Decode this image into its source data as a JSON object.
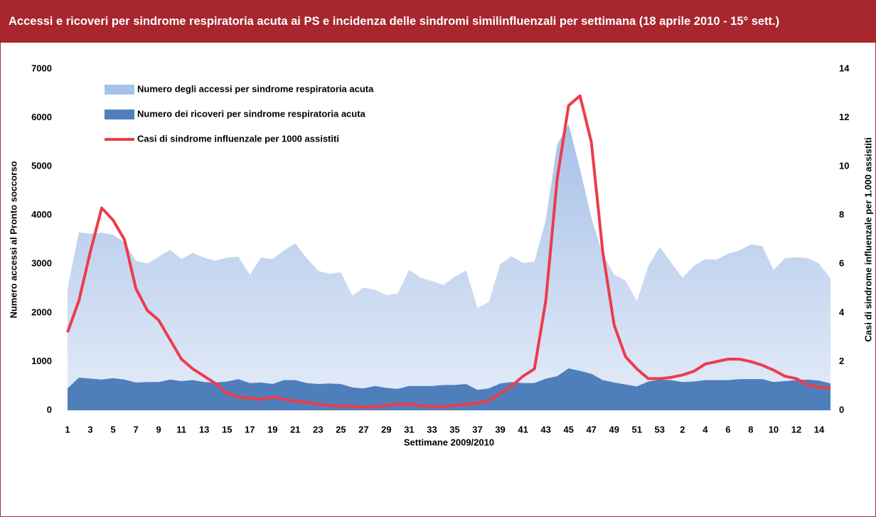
{
  "chart_data": {
    "type": "area-line",
    "title": "Accessi e ricoveri per sindrome respiratoria acuta ai PS e incidenza delle sindromi similinfluenzali per settimana (18 aprile 2010 - 15° sett.)",
    "xlabel": "Settimane 2009/2010",
    "ylabel": "Numero accessi al Pronto soccorso",
    "y2label": "Casi di sindrome influenzale per 1.000 assistiti",
    "categories": [
      "1",
      null,
      "3",
      null,
      "5",
      null,
      "7",
      null,
      "9",
      null,
      "11",
      null,
      "13",
      null,
      "15",
      null,
      "17",
      null,
      "19",
      null,
      "21",
      null,
      "23",
      null,
      "25",
      null,
      "27",
      null,
      "29",
      null,
      "31",
      null,
      "33",
      null,
      "35",
      null,
      "37",
      null,
      "39",
      null,
      "41",
      null,
      "43",
      null,
      "45",
      null,
      "47",
      null,
      "49",
      null,
      "51",
      null,
      "53",
      null,
      "2",
      null,
      "4",
      null,
      "6",
      null,
      "8",
      null,
      "10",
      null,
      "12",
      null,
      "14",
      null
    ],
    "ylim": [
      0,
      7000
    ],
    "yticks": [
      0,
      1000,
      2000,
      3000,
      4000,
      5000,
      6000,
      7000
    ],
    "y2lim": [
      0,
      14
    ],
    "y2ticks": [
      0,
      2,
      4,
      6,
      8,
      10,
      12,
      14
    ],
    "grid": false,
    "legend": "upper-left",
    "series": [
      {
        "name": "Numero degli accessi per sindrome respiratoria acuta",
        "kind": "area",
        "color": "#a7c1e8",
        "values": [
          2500,
          3650,
          3620,
          3640,
          3600,
          3450,
          3070,
          3010,
          3150,
          3290,
          3100,
          3230,
          3130,
          3070,
          3130,
          3150,
          2780,
          3130,
          3100,
          3280,
          3420,
          3120,
          2860,
          2800,
          2830,
          2350,
          2520,
          2470,
          2360,
          2400,
          2880,
          2720,
          2650,
          2570,
          2740,
          2870,
          2100,
          2220,
          3000,
          3160,
          3020,
          3050,
          3900,
          5450,
          5870,
          4950,
          3950,
          3200,
          2780,
          2660,
          2240,
          2960,
          3350,
          3030,
          2720,
          2960,
          3100,
          3090,
          3210,
          3280,
          3400,
          3370,
          2880,
          3120,
          3140,
          3120,
          3010,
          2700
        ]
      },
      {
        "name": "Numero dei ricoveri per sindrome respiratoria acuta",
        "kind": "area",
        "color": "#4f7fbb",
        "values": [
          450,
          670,
          650,
          630,
          660,
          630,
          570,
          580,
          580,
          630,
          600,
          620,
          580,
          570,
          590,
          640,
          560,
          570,
          540,
          620,
          620,
          560,
          540,
          550,
          540,
          470,
          450,
          500,
          460,
          440,
          500,
          500,
          500,
          520,
          520,
          540,
          420,
          450,
          550,
          580,
          560,
          560,
          650,
          700,
          860,
          810,
          750,
          620,
          570,
          530,
          490,
          590,
          630,
          620,
          580,
          590,
          620,
          620,
          620,
          640,
          640,
          640,
          580,
          600,
          620,
          630,
          610,
          550
        ]
      },
      {
        "name": "Casi di sindrome influenzale per 1000 assistiti",
        "kind": "line",
        "axis": "y2",
        "color": "#ee3b4b",
        "values": [
          3.2,
          4.5,
          6.5,
          8.3,
          7.8,
          7.0,
          5.0,
          4.1,
          3.7,
          2.9,
          2.1,
          1.7,
          1.4,
          1.1,
          0.7,
          0.55,
          0.5,
          0.45,
          0.55,
          0.45,
          0.38,
          0.32,
          0.25,
          0.2,
          0.18,
          0.16,
          0.12,
          0.15,
          0.2,
          0.25,
          0.25,
          0.2,
          0.15,
          0.15,
          0.2,
          0.25,
          0.3,
          0.4,
          0.7,
          1.0,
          1.4,
          1.7,
          4.5,
          9.5,
          12.5,
          12.9,
          11.0,
          6.5,
          3.5,
          2.2,
          1.7,
          1.3,
          1.3,
          1.35,
          1.45,
          1.6,
          1.9,
          2.0,
          2.1,
          2.1,
          2.0,
          1.85,
          1.65,
          1.4,
          1.3,
          1.05,
          0.95,
          0.9
        ]
      }
    ]
  }
}
